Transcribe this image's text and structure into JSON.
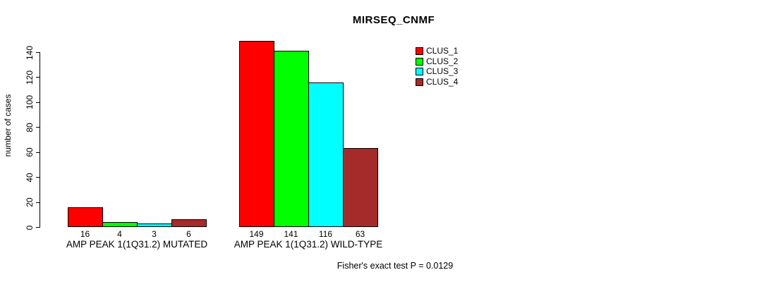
{
  "chart_data": {
    "type": "bar",
    "title": "MIRSEQ_CNMF",
    "ylabel": "number of cases",
    "xlabel": "",
    "footer": "Fisher's exact test P = 0.0129",
    "categories": [
      "AMP PEAK 1(1Q31.2) MUTATED",
      "AMP PEAK 1(1Q31.2) WILD-TYPE"
    ],
    "series": [
      {
        "name": "CLUS_1",
        "color": "#FF0000",
        "values": [
          16,
          149
        ]
      },
      {
        "name": "CLUS_2",
        "color": "#00FF00",
        "values": [
          4,
          141
        ]
      },
      {
        "name": "CLUS_3",
        "color": "#00FFFF",
        "values": [
          3,
          116
        ]
      },
      {
        "name": "CLUS_4",
        "color": "#A52A2A",
        "values": [
          6,
          63
        ]
      }
    ],
    "yticks": [
      0,
      20,
      40,
      60,
      80,
      100,
      120,
      140
    ],
    "ylim": [
      0,
      140
    ],
    "bar_value_labels": true,
    "legend_position": "top-right",
    "grid": false,
    "background": "#ffffff"
  }
}
